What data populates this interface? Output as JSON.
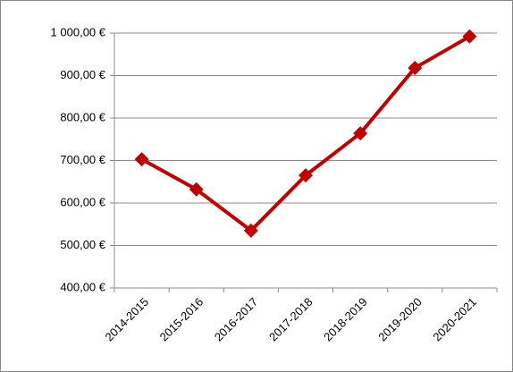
{
  "chart_data": {
    "type": "line",
    "categories": [
      "2014-2015",
      "2015-2016",
      "2016-2017",
      "2017-2018",
      "2018-2019",
      "2019-2020",
      "2020-2021"
    ],
    "values": [
      703,
      632,
      535,
      665,
      764,
      918,
      992
    ],
    "color": "#c00000",
    "ylim": [
      400,
      1000
    ],
    "yticks": [
      {
        "value": 400,
        "label": "400,00 €"
      },
      {
        "value": 500,
        "label": "500,00 €"
      },
      {
        "value": 600,
        "label": "600,00 €"
      },
      {
        "value": 700,
        "label": "700,00 €"
      },
      {
        "value": 800,
        "label": "800,00 €"
      },
      {
        "value": 900,
        "label": "900,00 €"
      },
      {
        "value": 1000,
        "label": "1 000,00 €"
      }
    ],
    "grid": true
  }
}
